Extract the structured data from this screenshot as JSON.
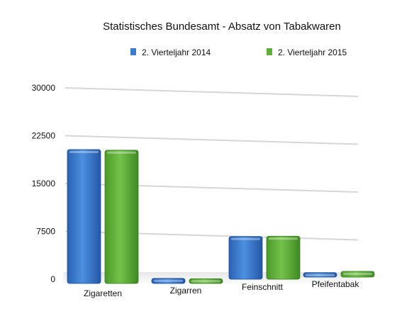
{
  "chart_data": {
    "type": "bar",
    "title": "Statistisches Bundesamt - Absatz von Tabakwaren",
    "categories": [
      "Zigaretten",
      "Zigarren",
      "Feinschnitt",
      "Pfeifentabak"
    ],
    "series": [
      {
        "name": "2. Vierteljahr 2014",
        "values": [
          21000,
          800,
          6700,
          700
        ],
        "color": "#3a7bd0"
      },
      {
        "name": "2. Vierteljahr 2015",
        "values": [
          20900,
          750,
          6750,
          900
        ],
        "color": "#5fae3a"
      }
    ],
    "yticks": [
      "0",
      "7500",
      "15000",
      "22500",
      "30000"
    ],
    "ylim": [
      0,
      30000
    ],
    "grid": true,
    "legend_position": "top",
    "chart_style": "3D perspective"
  }
}
